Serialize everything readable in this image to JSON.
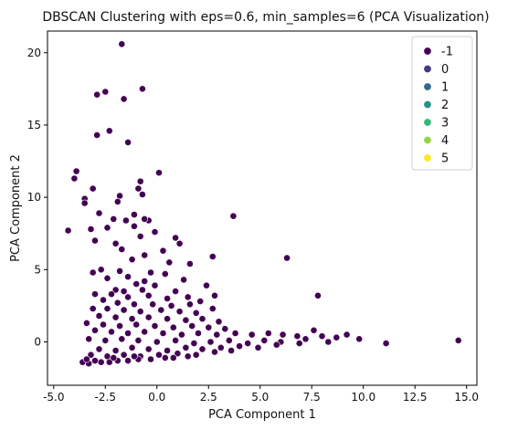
{
  "chart_data": {
    "type": "scatter",
    "title": "DBSCAN Clustering with eps=0.6, min_samples=6 (PCA Visualization)",
    "xlabel": "PCA Component 1",
    "ylabel": "PCA Component 2",
    "xlim": [
      -5.3,
      15.5
    ],
    "ylim": [
      -3.0,
      21.5
    ],
    "xticks": [
      -5.0,
      -2.5,
      0.0,
      2.5,
      5.0,
      7.5,
      10.0,
      12.5,
      15.0
    ],
    "xtick_labels": [
      "-5.0",
      "-2.5",
      "0.0",
      "2.5",
      "5.0",
      "7.5",
      "10.0",
      "12.5",
      "15.0"
    ],
    "yticks": [
      0,
      5,
      10,
      15,
      20
    ],
    "ytick_labels": [
      "0",
      "5",
      "10",
      "15",
      "20"
    ],
    "grid": false,
    "legend_position": "top-right",
    "point_edge_color": "#ffffff",
    "legend": [
      {
        "label": "-1",
        "color": "#440154"
      },
      {
        "label": "0",
        "color": "#443983"
      },
      {
        "label": "1",
        "color": "#31688e"
      },
      {
        "label": "2",
        "color": "#21918c"
      },
      {
        "label": "3",
        "color": "#35b779"
      },
      {
        "label": "4",
        "color": "#90d743"
      },
      {
        "label": "5",
        "color": "#fde725"
      }
    ],
    "series": [
      {
        "name": "-1",
        "color": "#440154",
        "points": [
          [
            -1.7,
            20.6
          ],
          [
            -0.7,
            17.5
          ],
          [
            -2.5,
            17.3
          ],
          [
            -2.9,
            17.1
          ],
          [
            -1.6,
            16.8
          ],
          [
            -2.9,
            14.3
          ],
          [
            -2.3,
            14.6
          ],
          [
            -1.4,
            13.8
          ],
          [
            -3.9,
            11.8
          ],
          [
            -4.0,
            11.3
          ],
          [
            0.1,
            11.7
          ],
          [
            -0.8,
            11.1
          ],
          [
            -0.9,
            10.6
          ],
          [
            -3.1,
            10.6
          ],
          [
            -0.7,
            10.2
          ],
          [
            -1.8,
            10.1
          ],
          [
            -3.5,
            9.9
          ],
          [
            -1.9,
            9.7
          ],
          [
            -3.5,
            9.6
          ],
          [
            -2.8,
            8.9
          ],
          [
            -1.1,
            8.8
          ],
          [
            3.7,
            8.7
          ],
          [
            -2.1,
            8.5
          ],
          [
            -1.5,
            8.4
          ],
          [
            -0.4,
            8.4
          ],
          [
            -0.6,
            8.5
          ],
          [
            -4.3,
            7.7
          ],
          [
            -3.2,
            7.8
          ],
          [
            -2.4,
            7.9
          ],
          [
            -1.1,
            8.0
          ],
          [
            -0.1,
            7.6
          ],
          [
            0.9,
            7.2
          ],
          [
            -0.8,
            7.3
          ],
          [
            -3.0,
            7.0
          ],
          [
            -2.0,
            6.8
          ],
          [
            1.1,
            6.8
          ],
          [
            0.3,
            6.3
          ],
          [
            -1.7,
            6.4
          ],
          [
            -0.6,
            6.0
          ],
          [
            2.7,
            5.9
          ],
          [
            6.3,
            5.8
          ],
          [
            -1.2,
            5.7
          ],
          [
            0.6,
            5.5
          ],
          [
            1.6,
            5.4
          ],
          [
            -2.7,
            5.0
          ],
          [
            -1.8,
            4.9
          ],
          [
            -0.3,
            4.8
          ],
          [
            -3.1,
            4.8
          ],
          [
            0.4,
            4.7
          ],
          [
            -1.4,
            4.5
          ],
          [
            -2.4,
            4.4
          ],
          [
            -0.6,
            4.2
          ],
          [
            1.3,
            4.3
          ],
          [
            -1.0,
            4.0
          ],
          [
            -0.1,
            3.9
          ],
          [
            2.4,
            3.9
          ],
          [
            7.8,
            3.2
          ],
          [
            -2.0,
            3.6
          ],
          [
            -1.6,
            3.5
          ],
          [
            -0.7,
            3.6
          ],
          [
            0.9,
            3.5
          ],
          [
            -3.0,
            3.3
          ],
          [
            -2.2,
            3.3
          ],
          [
            -1.4,
            3.1
          ],
          [
            -0.4,
            3.2
          ],
          [
            0.5,
            3.0
          ],
          [
            1.5,
            3.1
          ],
          [
            2.1,
            2.8
          ],
          [
            2.8,
            3.2
          ],
          [
            -2.6,
            2.9
          ],
          [
            -1.9,
            2.7
          ],
          [
            -1.1,
            2.6
          ],
          [
            -0.2,
            2.6
          ],
          [
            0.7,
            2.5
          ],
          [
            1.6,
            2.6
          ],
          [
            -3.1,
            2.3
          ],
          [
            -2.4,
            2.3
          ],
          [
            -1.6,
            2.2
          ],
          [
            -0.8,
            2.1
          ],
          [
            0.2,
            2.2
          ],
          [
            1.1,
            2.1
          ],
          [
            1.9,
            2.0
          ],
          [
            2.7,
            2.3
          ],
          [
            -2.8,
            1.8
          ],
          [
            -2.0,
            1.7
          ],
          [
            -1.2,
            1.6
          ],
          [
            -0.4,
            1.7
          ],
          [
            0.5,
            1.6
          ],
          [
            1.4,
            1.5
          ],
          [
            2.2,
            1.6
          ],
          [
            3.0,
            1.4
          ],
          [
            -3.4,
            1.3
          ],
          [
            -2.6,
            1.2
          ],
          [
            -1.8,
            1.1
          ],
          [
            -1.0,
            1.2
          ],
          [
            -0.1,
            1.1
          ],
          [
            0.8,
            1.0
          ],
          [
            1.7,
            1.1
          ],
          [
            2.5,
            1.0
          ],
          [
            3.3,
            0.9
          ],
          [
            -3.0,
            0.8
          ],
          [
            -2.2,
            0.7
          ],
          [
            -1.4,
            0.6
          ],
          [
            -0.6,
            0.7
          ],
          [
            0.3,
            0.6
          ],
          [
            1.2,
            0.5
          ],
          [
            2.0,
            0.6
          ],
          [
            2.9,
            0.5
          ],
          [
            3.8,
            0.6
          ],
          [
            4.6,
            0.5
          ],
          [
            5.4,
            0.6
          ],
          [
            6.1,
            0.5
          ],
          [
            6.8,
            0.4
          ],
          [
            7.6,
            0.8
          ],
          [
            7.2,
            0.2
          ],
          [
            -3.3,
            0.2
          ],
          [
            -2.5,
            0.1
          ],
          [
            -1.7,
            0.2
          ],
          [
            -0.9,
            0.1
          ],
          [
            0.0,
            0.0
          ],
          [
            0.9,
            0.1
          ],
          [
            1.8,
            -0.1
          ],
          [
            2.6,
            0.0
          ],
          [
            3.5,
            0.1
          ],
          [
            4.4,
            -0.1
          ],
          [
            5.2,
            0.1
          ],
          [
            6.0,
            0.0
          ],
          [
            6.9,
            -0.1
          ],
          [
            8.3,
            0.0
          ],
          [
            8.7,
            0.3
          ],
          [
            9.2,
            0.5
          ],
          [
            9.8,
            0.2
          ],
          [
            11.1,
            -0.1
          ],
          [
            14.6,
            0.1
          ],
          [
            8.0,
            0.4
          ],
          [
            -2.8,
            -0.5
          ],
          [
            -2.0,
            -0.6
          ],
          [
            -1.2,
            -0.4
          ],
          [
            -0.4,
            -0.5
          ],
          [
            0.5,
            -0.6
          ],
          [
            1.4,
            -0.4
          ],
          [
            2.2,
            -0.5
          ],
          [
            3.1,
            -0.4
          ],
          [
            4.0,
            -0.3
          ],
          [
            4.9,
            -0.4
          ],
          [
            5.8,
            -0.2
          ],
          [
            -3.2,
            -0.9
          ],
          [
            -2.4,
            -1.0
          ],
          [
            -1.6,
            -0.9
          ],
          [
            -0.8,
            -1.0
          ],
          [
            0.1,
            -0.9
          ],
          [
            1.0,
            -0.8
          ],
          [
            1.9,
            -0.9
          ],
          [
            2.8,
            -0.7
          ],
          [
            3.6,
            -0.6
          ],
          [
            -3.6,
            -1.4
          ],
          [
            -3.3,
            -1.5
          ],
          [
            -3.0,
            -1.3
          ],
          [
            -2.7,
            -1.4
          ],
          [
            -2.3,
            -1.4
          ],
          [
            -1.9,
            -1.3
          ],
          [
            -1.4,
            -1.3
          ],
          [
            -0.9,
            -1.2
          ],
          [
            -0.3,
            -1.2
          ],
          [
            0.4,
            -1.1
          ],
          [
            -3.4,
            -1.2
          ],
          [
            -2.1,
            -1.1
          ],
          [
            -1.1,
            -1.0
          ],
          [
            0.8,
            -1.1
          ],
          [
            1.5,
            -1.0
          ]
        ]
      }
    ]
  }
}
